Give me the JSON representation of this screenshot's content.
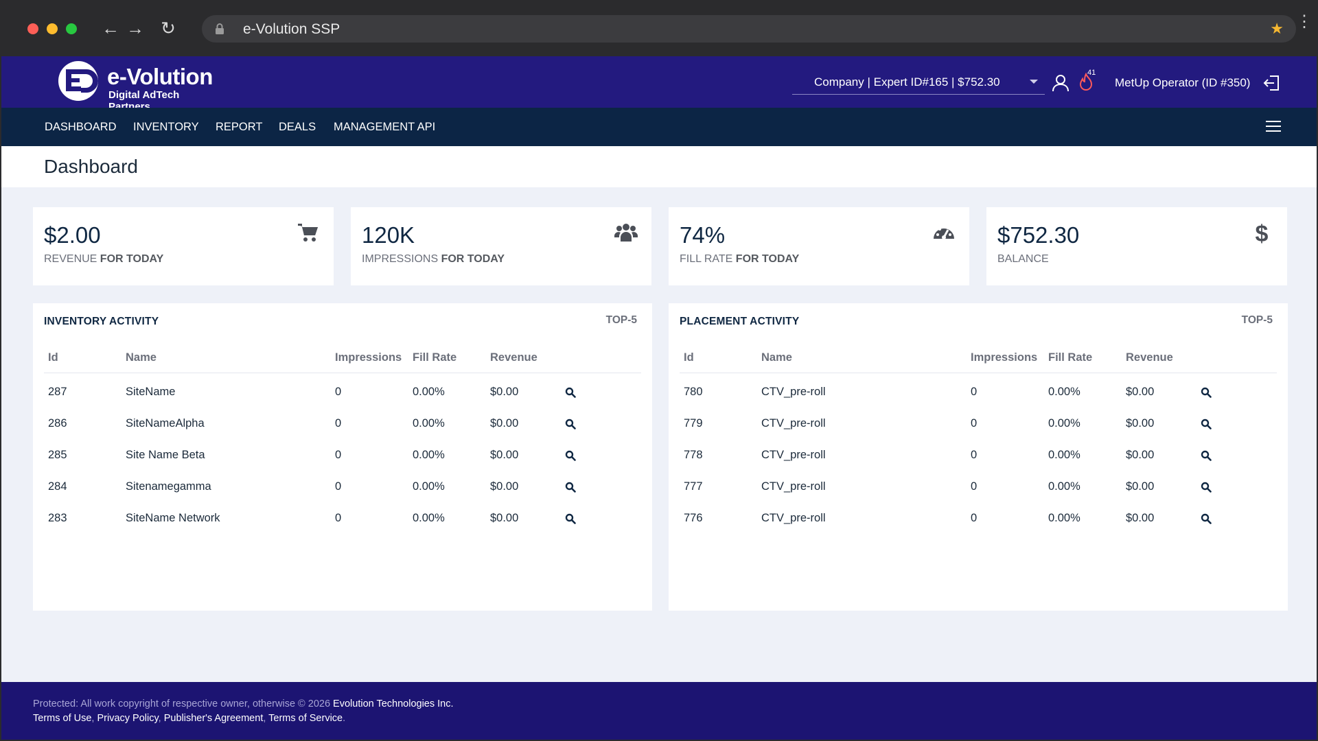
{
  "browser": {
    "url_title": "e-Volution SSP"
  },
  "header": {
    "logo_title": "e-Volution",
    "logo_subtitle": "Digital AdTech Partners",
    "company_selector": "Company | Expert ID#165 | $752.30",
    "notification_count": "41",
    "operator": "MetUp Operator (ID #350)"
  },
  "nav": {
    "items": [
      "DASHBOARD",
      "INVENTORY",
      "REPORT",
      "DEALS",
      "MANAGEMENT API"
    ]
  },
  "page": {
    "title": "Dashboard"
  },
  "cards": [
    {
      "value": "$2.00",
      "label_main": "REVENUE",
      "label_suffix": " FOR TODAY",
      "icon": "cart-icon"
    },
    {
      "value": "120K",
      "label_main": "IMPRESSIONS",
      "label_suffix": " FOR TODAY",
      "icon": "users-icon"
    },
    {
      "value": "74%",
      "label_main": "FILL RATE",
      "label_suffix": " FOR TODAY",
      "icon": "gauge-icon"
    },
    {
      "value": "$752.30",
      "label_main": "BALANCE",
      "label_suffix": "",
      "icon": "dollar-icon"
    }
  ],
  "inventory": {
    "title": "INVENTORY ACTIVITY",
    "top": "TOP-5",
    "columns": [
      "Id",
      "Name",
      "Impressions",
      "Fill Rate",
      "Revenue"
    ],
    "rows": [
      {
        "id": "287",
        "name": "SiteName",
        "impressions": "0",
        "fill_rate": "0.00%",
        "revenue": "$0.00"
      },
      {
        "id": "286",
        "name": "SiteNameAlpha",
        "impressions": "0",
        "fill_rate": "0.00%",
        "revenue": "$0.00"
      },
      {
        "id": "285",
        "name": "Site Name Beta",
        "impressions": "0",
        "fill_rate": "0.00%",
        "revenue": "$0.00"
      },
      {
        "id": "284",
        "name": "Sitenamegamma",
        "impressions": "0",
        "fill_rate": "0.00%",
        "revenue": "$0.00"
      },
      {
        "id": "283",
        "name": "SiteName Network",
        "impressions": "0",
        "fill_rate": "0.00%",
        "revenue": "$0.00"
      }
    ]
  },
  "placement": {
    "title": "PLACEMENT ACTIVITY",
    "top": "TOP-5",
    "columns": [
      "Id",
      "Name",
      "Impressions",
      "Fill Rate",
      "Revenue"
    ],
    "rows": [
      {
        "id": "780",
        "name": "CTV_pre-roll",
        "impressions": "0",
        "fill_rate": "0.00%",
        "revenue": "$0.00"
      },
      {
        "id": "779",
        "name": "CTV_pre-roll",
        "impressions": "0",
        "fill_rate": "0.00%",
        "revenue": "$0.00"
      },
      {
        "id": "778",
        "name": "CTV_pre-roll",
        "impressions": "0",
        "fill_rate": "0.00%",
        "revenue": "$0.00"
      },
      {
        "id": "777",
        "name": "CTV_pre-roll",
        "impressions": "0",
        "fill_rate": "0.00%",
        "revenue": "$0.00"
      },
      {
        "id": "776",
        "name": "CTV_pre-roll",
        "impressions": "0",
        "fill_rate": "0.00%",
        "revenue": "$0.00"
      }
    ]
  },
  "footer": {
    "protected_text": "Protected: All work copyright of respective owner, otherwise © 2026 ",
    "company": "Evolution Technologies Inc.",
    "links": [
      "Terms of Use",
      "Privacy Policy",
      "Publisher's Agreement",
      "Terms of Service"
    ]
  },
  "colors": {
    "header": "#231a7f",
    "nav": "#0c2545",
    "footer": "#1c1472",
    "background": "#eef1f8"
  }
}
